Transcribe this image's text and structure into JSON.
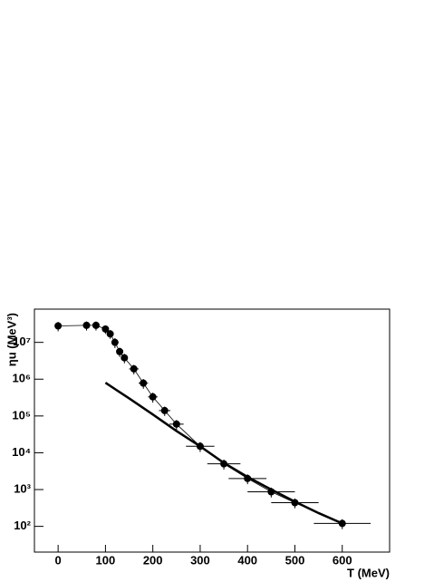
{
  "chart_data": {
    "type": "scatter",
    "xlabel": "T (MeV)",
    "ylabel": "ηu (MeV³)",
    "xlim": [
      -50,
      700
    ],
    "ylim": [
      20,
      80000000
    ],
    "ylog": true,
    "xticks": [
      0,
      100,
      200,
      300,
      400,
      500,
      600
    ],
    "yticks": [
      {
        "value": 100,
        "label": "10²"
      },
      {
        "value": 1000,
        "label": "10³"
      },
      {
        "value": 10000,
        "label": "10⁴"
      },
      {
        "value": 100000,
        "label": "10⁵"
      },
      {
        "value": 1000000,
        "label": "10⁶"
      },
      {
        "value": 10000000,
        "label": "10⁷"
      }
    ],
    "series": [
      {
        "color": "#000000",
        "style": "points",
        "x": [
          0,
          60,
          80,
          100,
          110,
          120,
          130,
          140,
          160,
          180,
          200,
          225,
          250,
          300,
          350,
          400,
          450,
          500,
          600
        ],
        "values": [
          28000000,
          29000000,
          29000000,
          23000000,
          17000000,
          10000000,
          5600000,
          3800000,
          1900000,
          780000,
          330000,
          140000,
          60000,
          15000,
          5000,
          2000,
          870,
          440,
          120
        ],
        "xerr": [
          0,
          5,
          5,
          5,
          5,
          5,
          5,
          5,
          10,
          10,
          10,
          12,
          15,
          30,
          35,
          40,
          50,
          50,
          60
        ],
        "yerr": [
          8000000,
          8000000,
          8000000,
          6000000,
          4500000,
          3000000,
          1600000,
          1100000,
          550000,
          230000,
          100000,
          40000,
          18000,
          4500,
          1500,
          600,
          260,
          130,
          36
        ]
      },
      {
        "color": "#000000",
        "style": "curve",
        "x": [
          100,
          150,
          200,
          250,
          300,
          350,
          400,
          450,
          500,
          550,
          600
        ],
        "values": [
          800000,
          300000,
          110000,
          39000,
          15000,
          5300,
          2200,
          1000,
          470,
          230,
          120
        ]
      }
    ]
  }
}
